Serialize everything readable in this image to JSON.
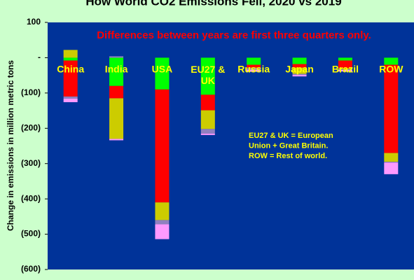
{
  "chart_data": {
    "type": "stacked_bar",
    "title": "How World CO2 Emissions Fell, 2020 vs 2019",
    "y_label": "Change in emissions in million metric tons",
    "annotation": "Differences between years are first three quarters only.",
    "notes": [
      "EU27 & UK = European",
      "Union + Great Britain.",
      "ROW = Rest of world."
    ],
    "categories": [
      "China",
      "India",
      "USA",
      "EU27 & UK",
      "Russia",
      "Japan",
      "Brazil",
      "ROW"
    ],
    "series": [
      {
        "color": "#00ff00",
        "values": [
          -8,
          -80,
          -90,
          -105,
          -20,
          -18,
          -8,
          -20
        ]
      },
      {
        "color": "#ff0000",
        "values": [
          -102,
          -35,
          -320,
          -44,
          -8,
          -10,
          -22,
          -250
        ]
      },
      {
        "color": "#cccc00",
        "values": [
          22,
          -115,
          -50,
          -53,
          -2,
          -18,
          -3,
          -25
        ]
      },
      {
        "color": "#9080c0",
        "values": [
          -6,
          4,
          -12,
          -13,
          -4,
          -3,
          -2,
          -2
        ]
      },
      {
        "color": "#ff99ff",
        "values": [
          -10,
          -4,
          -42,
          -4,
          -6,
          -4,
          -4,
          -33
        ]
      }
    ],
    "ylim": [
      -600,
      100
    ],
    "yticks": [
      {
        "value": -600,
        "label": "(600)"
      },
      {
        "value": -500,
        "label": "(500)"
      },
      {
        "value": -400,
        "label": "(400)"
      },
      {
        "value": -300,
        "label": "(300)"
      },
      {
        "value": -200,
        "label": "(200)"
      },
      {
        "value": -100,
        "label": "(100)"
      },
      {
        "value": 0,
        "label": "-"
      },
      100
    ],
    "grid": false
  }
}
